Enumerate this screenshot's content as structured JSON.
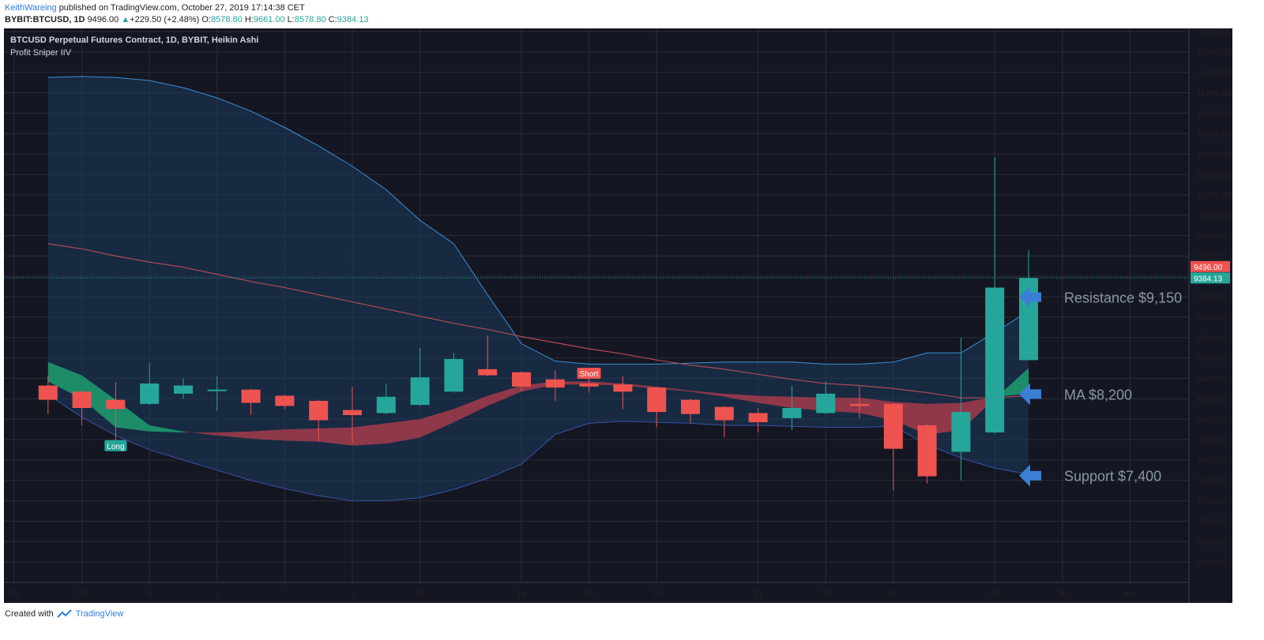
{
  "header": {
    "author": "KeithWareing",
    "published_text": "published on TradingView.com, October 27, 2019 17:14:38 CET",
    "symbol": "BYBIT:BTCUSD, 1D",
    "last": "9496.00",
    "change_arrow": "▲",
    "change": "+229.50 (+2.48%)",
    "open_label": "O:",
    "open": "8578.80",
    "high_label": "H:",
    "high": "9661.00",
    "low_label": "L:",
    "low": "8578.80",
    "close_label": "C:",
    "close": "9384.13"
  },
  "legend": {
    "title": "BTCUSD Perpetual Futures Contract, 1D, BYBIT, Heikin Ashi",
    "indicator": "Profit Sniper IIV"
  },
  "footer": {
    "created_with": "Created with",
    "brand": "TradingView"
  },
  "colors": {
    "background": "#141722",
    "grid": "#2a2e39",
    "bull": "#26a69a",
    "bear": "#ef5350",
    "band_line": "#3b8fd9",
    "band_fill": "#1a3a5c",
    "ma_line": "#b04a55",
    "cloud_green": "#1e9e6e",
    "cloud_red": "#a33b4a",
    "annotation": "#8a96a6",
    "arrow": "#3b7fd4",
    "price_line": "#26a69a"
  },
  "chart_data": {
    "type": "candlestick",
    "style": "Heikin Ashi",
    "ylim": [
      6400,
      11800
    ],
    "y_ticks": [
      6600,
      6800,
      7000,
      7200,
      7400,
      7600,
      7800,
      8000,
      8200,
      8400,
      8600,
      8800,
      9000,
      9200,
      9400,
      9600,
      9800,
      10000,
      10200,
      10400,
      10600,
      10800,
      11000,
      11200,
      11400,
      11600,
      11800
    ],
    "x_ticks": [
      {
        "day": 0,
        "label": "29"
      },
      {
        "day": 2,
        "label": "Oct"
      },
      {
        "day": 4,
        "label": "3"
      },
      {
        "day": 6,
        "label": "5"
      },
      {
        "day": 8,
        "label": "7"
      },
      {
        "day": 10,
        "label": "9"
      },
      {
        "day": 12,
        "label": "11"
      },
      {
        "day": 15,
        "label": "14"
      },
      {
        "day": 17,
        "label": "16"
      },
      {
        "day": 19,
        "label": "18"
      },
      {
        "day": 22,
        "label": "21"
      },
      {
        "day": 24,
        "label": "23"
      },
      {
        "day": 26,
        "label": "25"
      },
      {
        "day": 29,
        "label": "28"
      },
      {
        "day": 31,
        "label": "30"
      },
      {
        "day": 33,
        "label": "Nov"
      }
    ],
    "candles": [
      {
        "date": "2019-09-28",
        "o": 8330,
        "h": 8430,
        "l": 8050,
        "c": 8190
      },
      {
        "date": "2019-09-29",
        "o": 8270,
        "h": 8290,
        "l": 7940,
        "c": 8110
      },
      {
        "date": "2019-09-30",
        "o": 8190,
        "h": 8360,
        "l": 7700,
        "c": 8100
      },
      {
        "date": "2019-10-01",
        "o": 8150,
        "h": 8550,
        "l": 8140,
        "c": 8350
      },
      {
        "date": "2019-10-02",
        "o": 8250,
        "h": 8400,
        "l": 8200,
        "c": 8330
      },
      {
        "date": "2019-10-03",
        "o": 8280,
        "h": 8420,
        "l": 8080,
        "c": 8290
      },
      {
        "date": "2019-10-04",
        "o": 8290,
        "h": 8300,
        "l": 8040,
        "c": 8160
      },
      {
        "date": "2019-10-05",
        "o": 8230,
        "h": 8240,
        "l": 8100,
        "c": 8130
      },
      {
        "date": "2019-10-06",
        "o": 8180,
        "h": 8190,
        "l": 7780,
        "c": 7990
      },
      {
        "date": "2019-10-07",
        "o": 8090,
        "h": 8320,
        "l": 7770,
        "c": 8040
      },
      {
        "date": "2019-10-08",
        "o": 8060,
        "h": 8350,
        "l": 8050,
        "c": 8220
      },
      {
        "date": "2019-10-09",
        "o": 8140,
        "h": 8700,
        "l": 8130,
        "c": 8410
      },
      {
        "date": "2019-10-10",
        "o": 8270,
        "h": 8650,
        "l": 8260,
        "c": 8590
      },
      {
        "date": "2019-10-11",
        "o": 8490,
        "h": 8820,
        "l": 8420,
        "c": 8430
      },
      {
        "date": "2019-10-12",
        "o": 8460,
        "h": 8470,
        "l": 8280,
        "c": 8320
      },
      {
        "date": "2019-10-13",
        "o": 8390,
        "h": 8480,
        "l": 8180,
        "c": 8310
      },
      {
        "date": "2019-10-14",
        "o": 8350,
        "h": 8400,
        "l": 8260,
        "c": 8320
      },
      {
        "date": "2019-10-15",
        "o": 8340,
        "h": 8420,
        "l": 8100,
        "c": 8270
      },
      {
        "date": "2019-10-16",
        "o": 8310,
        "h": 8320,
        "l": 7920,
        "c": 8070
      },
      {
        "date": "2019-10-17",
        "o": 8190,
        "h": 8200,
        "l": 7960,
        "c": 8050
      },
      {
        "date": "2019-10-18",
        "o": 8120,
        "h": 8130,
        "l": 7820,
        "c": 7990
      },
      {
        "date": "2019-10-19",
        "o": 8060,
        "h": 8110,
        "l": 7870,
        "c": 7970
      },
      {
        "date": "2019-10-20",
        "o": 8010,
        "h": 8330,
        "l": 7890,
        "c": 8110
      },
      {
        "date": "2019-10-21",
        "o": 8060,
        "h": 8370,
        "l": 8050,
        "c": 8250
      },
      {
        "date": "2019-10-22",
        "o": 8150,
        "h": 8320,
        "l": 8010,
        "c": 8130
      },
      {
        "date": "2019-10-23",
        "o": 8150,
        "h": 8160,
        "l": 7300,
        "c": 7710
      },
      {
        "date": "2019-10-24",
        "o": 7940,
        "h": 7950,
        "l": 7370,
        "c": 7440
      },
      {
        "date": "2019-10-25",
        "o": 7680,
        "h": 8800,
        "l": 7400,
        "c": 8070
      },
      {
        "date": "2019-10-26",
        "o": 7870,
        "h": 10570,
        "l": 7860,
        "c": 9290
      },
      {
        "date": "2019-10-27",
        "o": 8578.8,
        "h": 9661,
        "l": 8578.8,
        "c": 9384.13
      }
    ],
    "bollinger_upper": [
      11350,
      11360,
      11350,
      11320,
      11250,
      11150,
      11020,
      10860,
      10680,
      10480,
      10250,
      9950,
      9720,
      9220,
      8740,
      8570,
      8540,
      8540,
      8540,
      8550,
      8560,
      8560,
      8560,
      8540,
      8540,
      8560,
      8650,
      8650,
      8850,
      9060
    ],
    "bollinger_lower": [
      8240,
      8020,
      7840,
      7700,
      7600,
      7500,
      7400,
      7320,
      7250,
      7200,
      7200,
      7230,
      7310,
      7420,
      7560,
      7850,
      7960,
      7980,
      7970,
      7960,
      7940,
      7940,
      7930,
      7920,
      7920,
      7930,
      7750,
      7620,
      7520,
      7460
    ],
    "ma_line": [
      9720,
      9670,
      9600,
      9540,
      9490,
      9420,
      9350,
      9290,
      9220,
      9150,
      9080,
      9010,
      8940,
      8880,
      8810,
      8750,
      8690,
      8640,
      8580,
      8530,
      8490,
      8440,
      8390,
      8350,
      8330,
      8300,
      8260,
      8210,
      8210,
      8230
    ],
    "cloud_fast": [
      8560,
      8430,
      8190,
      7940,
      7880,
      7840,
      7810,
      7790,
      7780,
      7740,
      7760,
      7820,
      7970,
      8130,
      8270,
      8340,
      8340,
      8330,
      8300,
      8270,
      8220,
      8160,
      8110,
      8080,
      8060,
      7990,
      7850,
      7890,
      8200,
      8500
    ],
    "cloud_slow": [
      8370,
      8200,
      7920,
      7880,
      7870,
      7870,
      7880,
      7900,
      7910,
      7920,
      7960,
      8000,
      8100,
      8230,
      8330,
      8370,
      8370,
      8350,
      8320,
      8280,
      8250,
      8230,
      8220,
      8210,
      8210,
      8170,
      8150,
      8160,
      8220,
      8250
    ],
    "signals": [
      {
        "label": "Long",
        "day": 3,
        "price": 7740
      },
      {
        "label": "Short",
        "day": 17,
        "price": 8450
      }
    ],
    "price_labels": {
      "last": "9496.00",
      "current": "9384.13",
      "current_value": 9384.13,
      "last_value": 9496
    },
    "annotations": [
      {
        "text": "Resistance $9,150",
        "price": 9150
      },
      {
        "text": "MA $8,200",
        "price": 8200
      },
      {
        "text": "Support $7,400",
        "price": 7400
      }
    ]
  }
}
